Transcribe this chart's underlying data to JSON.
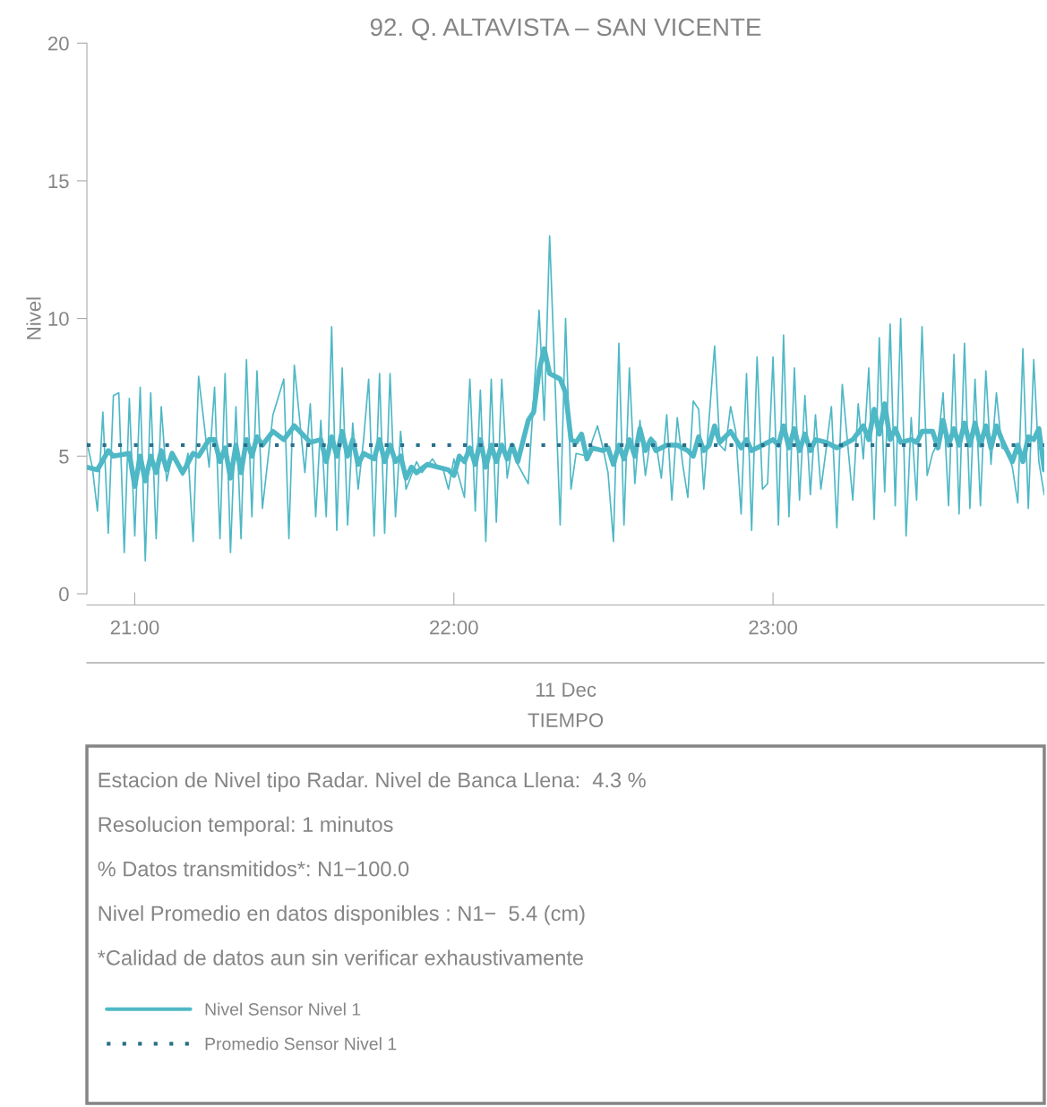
{
  "chart_data": {
    "type": "line",
    "title": "92. Q. ALTAVISTA – SAN VICENTE",
    "xlabel": "TIEMPO",
    "ylabel": "Nivel",
    "xlim": [
      20.85,
      23.85
    ],
    "xticks": [
      {
        "value": 21,
        "label": "21:00"
      },
      {
        "value": 22,
        "label": "22:00"
      },
      {
        "value": 23,
        "label": "23:00"
      }
    ],
    "ylim": [
      0,
      20
    ],
    "yticks": [
      0,
      5,
      10,
      15,
      20
    ],
    "grid": false,
    "legend": "bottom",
    "marker": "none",
    "line_style": "solid",
    "series": [
      {
        "color": "#4fb8c6",
        "x": [
          20.85,
          20.867,
          20.883,
          20.9,
          20.917,
          20.933,
          20.95,
          20.967,
          20.983,
          21,
          21.017,
          21.033,
          21.05,
          21.067,
          21.083,
          21.1,
          21.117,
          21.15,
          21.167,
          21.183,
          21.2,
          21.233,
          21.25,
          21.267,
          21.283,
          21.3,
          21.317,
          21.333,
          21.35,
          21.367,
          21.383,
          21.4,
          21.433,
          21.467,
          21.483,
          21.5,
          21.533,
          21.55,
          21.567,
          21.583,
          21.6,
          21.617,
          21.633,
          21.65,
          21.667,
          21.683,
          21.7,
          21.717,
          21.733,
          21.75,
          21.767,
          21.783,
          21.8,
          21.817,
          21.833,
          21.85,
          21.883,
          21.9,
          21.933,
          21.95,
          21.967,
          21.983,
          22,
          22.033,
          22.05,
          22.067,
          22.083,
          22.1,
          22.117,
          22.133,
          22.15,
          22.167,
          22.183,
          22.2,
          22.233,
          22.267,
          22.283,
          22.3,
          22.317,
          22.333,
          22.35,
          22.367,
          22.383,
          22.417,
          22.45,
          22.467,
          22.483,
          22.5,
          22.517,
          22.533,
          22.55,
          22.567,
          22.583,
          22.6,
          22.617,
          22.633,
          22.65,
          22.667,
          22.683,
          22.7,
          22.717,
          22.733,
          22.75,
          22.767,
          22.783,
          22.817,
          22.833,
          22.85,
          22.867,
          22.883,
          22.9,
          22.917,
          22.933,
          22.95,
          22.967,
          22.983,
          23,
          23.017,
          23.033,
          23.05,
          23.067,
          23.083,
          23.1,
          23.117,
          23.133,
          23.15,
          23.167,
          23.183,
          23.2,
          23.217,
          23.25,
          23.267,
          23.283,
          23.3,
          23.317,
          23.333,
          23.35,
          23.367,
          23.383,
          23.4,
          23.417,
          23.433,
          23.45,
          23.467,
          23.483,
          23.5,
          23.517,
          23.533,
          23.55,
          23.567,
          23.583,
          23.6,
          23.617,
          23.633,
          23.65,
          23.667,
          23.683,
          23.7,
          23.717,
          23.733,
          23.75,
          23.767,
          23.783,
          23.8,
          23.817,
          23.833,
          23.85
        ],
        "values": [
          5.5,
          4.6,
          3.0,
          6.6,
          2.2,
          7.2,
          7.3,
          1.5,
          7.1,
          2.1,
          7.5,
          1.2,
          7.3,
          2.0,
          6.8,
          4.1,
          5.0,
          4.3,
          5.1,
          1.9,
          7.9,
          4.6,
          7.5,
          2.0,
          8.0,
          1.5,
          6.8,
          2.0,
          8.5,
          2.8,
          8.1,
          3.1,
          6.5,
          7.8,
          2.0,
          8.3,
          4.4,
          6.9,
          2.8,
          6.3,
          2.8,
          9.7,
          2.3,
          8.2,
          2.5,
          6.2,
          3.8,
          5.6,
          7.8,
          2.1,
          8.0,
          2.2,
          8.0,
          2.8,
          5.9,
          3.8,
          4.8,
          4.4,
          4.9,
          4.6,
          4.5,
          3.8,
          4.9,
          3.5,
          7.8,
          3.0,
          7.4,
          1.9,
          7.8,
          2.6,
          7.8,
          4.2,
          5.4,
          4.7,
          4.0,
          10.3,
          6.3,
          13.0,
          7.7,
          2.5,
          10.0,
          3.8,
          5.1,
          5.0,
          6.1,
          5.3,
          4.4,
          1.9,
          9.1,
          2.5,
          8.2,
          4.0,
          6.3,
          4.3,
          5.7,
          5.5,
          4.2,
          6.5,
          3.4,
          6.4,
          4.7,
          3.5,
          7.0,
          6.7,
          3.8,
          9.0,
          5.4,
          5.2,
          6.8,
          5.9,
          2.9,
          8.0,
          2.3,
          8.6,
          3.8,
          4.0,
          8.6,
          2.5,
          9.4,
          2.8,
          8.2,
          3.4,
          7.2,
          3.6,
          6.5,
          3.8,
          5.3,
          6.8,
          2.4,
          7.6,
          3.4,
          6.9,
          4.9,
          8.2,
          2.7,
          9.3,
          3.7,
          9.8,
          3.2,
          10.0,
          2.1,
          6.4,
          3.4,
          9.7,
          4.3,
          5.1,
          5.5,
          7.3,
          3.2,
          8.7,
          2.9,
          9.1,
          3.1,
          7.8,
          3.2,
          8.1,
          4.7,
          7.3,
          5.3,
          5.2,
          4.6,
          3.3,
          8.9,
          3.1,
          8.5,
          4.8,
          3.6
        ]
      },
      {
        "name": "Nivel Sensor Nivel 1",
        "color": "#4fb8c6",
        "x": [
          20.85,
          20.883,
          20.917,
          20.933,
          20.983,
          21.0,
          21.017,
          21.033,
          21.05,
          21.067,
          21.083,
          21.1,
          21.117,
          21.15,
          21.183,
          21.2,
          21.233,
          21.25,
          21.267,
          21.283,
          21.3,
          21.317,
          21.333,
          21.35,
          21.367,
          21.383,
          21.4,
          21.433,
          21.467,
          21.5,
          21.55,
          21.583,
          21.6,
          21.617,
          21.633,
          21.65,
          21.667,
          21.683,
          21.7,
          21.717,
          21.75,
          21.767,
          21.783,
          21.8,
          21.817,
          21.833,
          21.85,
          21.867,
          21.883,
          21.917,
          21.95,
          21.983,
          22.0,
          22.017,
          22.033,
          22.05,
          22.067,
          22.083,
          22.1,
          22.117,
          22.133,
          22.15,
          22.167,
          22.183,
          22.2,
          22.233,
          22.25,
          22.267,
          22.283,
          22.3,
          22.333,
          22.35,
          22.367,
          22.383,
          22.4,
          22.417,
          22.433,
          22.467,
          22.483,
          22.5,
          22.517,
          22.533,
          22.55,
          22.567,
          22.583,
          22.6,
          22.617,
          22.633,
          22.667,
          22.7,
          22.733,
          22.75,
          22.767,
          22.783,
          22.8,
          22.817,
          22.833,
          22.867,
          22.9,
          22.917,
          22.933,
          22.967,
          23.0,
          23.017,
          23.033,
          23.05,
          23.067,
          23.083,
          23.1,
          23.117,
          23.133,
          23.167,
          23.2,
          23.217,
          23.25,
          23.283,
          23.3,
          23.317,
          23.333,
          23.35,
          23.367,
          23.383,
          23.4,
          23.433,
          23.45,
          23.467,
          23.5,
          23.517,
          23.533,
          23.55,
          23.567,
          23.583,
          23.6,
          23.617,
          23.633,
          23.65,
          23.667,
          23.683,
          23.7,
          23.717,
          23.733,
          23.75,
          23.767,
          23.783,
          23.8,
          23.817,
          23.833,
          23.85
        ],
        "values": [
          4.6,
          4.5,
          5.2,
          5.0,
          5.1,
          3.9,
          5.0,
          4.1,
          5.0,
          4.4,
          5.2,
          4.5,
          5.1,
          4.4,
          5.1,
          5.0,
          5.6,
          5.6,
          4.8,
          5.3,
          4.2,
          5.4,
          4.4,
          5.6,
          5.0,
          5.7,
          5.4,
          5.9,
          5.6,
          6.1,
          5.5,
          5.6,
          4.8,
          5.7,
          5.0,
          5.9,
          5.0,
          5.6,
          4.7,
          5.1,
          4.9,
          5.6,
          4.8,
          5.4,
          4.8,
          5.0,
          4.2,
          4.6,
          4.4,
          4.7,
          4.6,
          4.5,
          4.3,
          5.0,
          4.8,
          5.3,
          4.7,
          5.6,
          4.6,
          5.4,
          4.8,
          5.4,
          4.9,
          5.4,
          4.8,
          6.3,
          6.6,
          8.1,
          8.9,
          8.0,
          7.8,
          7.3,
          5.6,
          5.5,
          5.8,
          4.9,
          5.3,
          5.2,
          5.3,
          4.7,
          5.4,
          4.9,
          5.6,
          5.0,
          6.0,
          5.2,
          5.6,
          5.2,
          5.4,
          5.4,
          5.2,
          5.0,
          5.7,
          5.2,
          5.4,
          6.1,
          5.5,
          5.9,
          5.3,
          5.6,
          5.2,
          5.4,
          5.6,
          5.4,
          6.1,
          5.3,
          6.0,
          5.2,
          5.8,
          5.2,
          5.6,
          5.5,
          5.3,
          5.4,
          5.6,
          6.1,
          5.6,
          6.7,
          5.8,
          6.9,
          5.6,
          6.0,
          5.5,
          5.6,
          5.5,
          5.9,
          5.9,
          5.3,
          6.3,
          5.4,
          6.0,
          5.4,
          6.2,
          5.4,
          6.2,
          5.4,
          6.1,
          5.3,
          6.1,
          5.6,
          5.2,
          4.8,
          5.4,
          4.8,
          5.7,
          5.6,
          6.0,
          4.5
        ]
      }
    ],
    "ref_lines": [
      {
        "axis": "y",
        "value": 5.4,
        "label": "Promedio Sensor Nivel 1",
        "color": "#2a6f8a",
        "line_style": "dotted"
      }
    ],
    "annotations": [
      "11 Dec",
      "Estacion de Nivel tipo Radar. Nivel de Banca Llena:  4.3 %",
      "Resolucion temporal: 1 minutos",
      "% Datos transmitidos*: N1−100.0",
      "Nivel Promedio en datos disponibles : N1−  5.4 (cm)",
      "*Calidad de datos aun sin verificar exhaustivamente"
    ]
  }
}
